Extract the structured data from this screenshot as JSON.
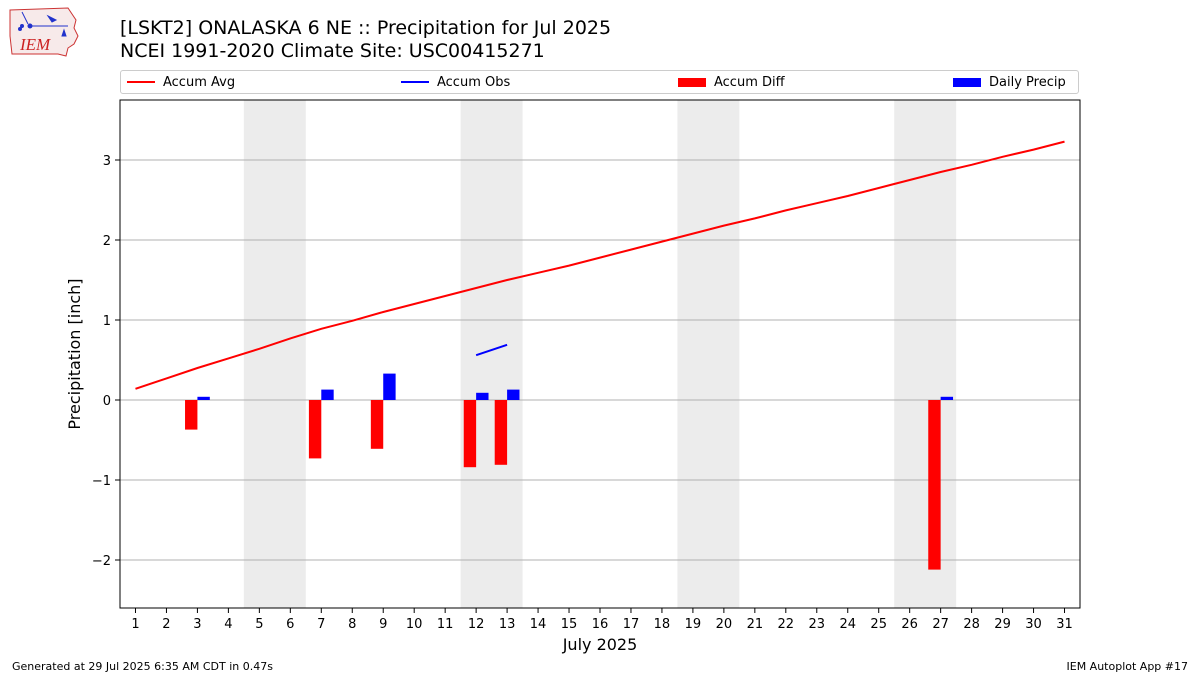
{
  "logo": {
    "text": "IEM"
  },
  "header": {
    "title_line1": "[LSKT2] ONALASKA 6 NE :: Precipitation for Jul 2025",
    "title_line2": "NCEI 1991-2020 Climate Site: USC00415271"
  },
  "footer": {
    "left": "Generated at 29 Jul 2025 6:35 AM CDT in 0.47s",
    "right": "IEM Autoplot App #17"
  },
  "colors": {
    "avg": "#ff0000",
    "obs": "#0000ff",
    "diff": "#ff0000",
    "daily": "#0000ff",
    "weekend_shade": "#ececec",
    "grid": "#b0b0b0"
  },
  "chart_data": {
    "type": "bar",
    "xlabel": "July 2025",
    "ylabel": "Precipitation [inch]",
    "xlim": [
      0.5,
      31.5
    ],
    "ylim": [
      -2.6,
      3.75
    ],
    "yticks": [
      -2,
      -1,
      0,
      1,
      2,
      3
    ],
    "ytick_labels": [
      "−2",
      "−1",
      "0",
      "1",
      "2",
      "3"
    ],
    "grid": "horizontal",
    "legend": [
      {
        "label": "Accum Avg",
        "kind": "line",
        "color": "#ff0000"
      },
      {
        "label": "Accum Obs",
        "kind": "line",
        "color": "#0000ff"
      },
      {
        "label": "Accum Diff",
        "kind": "bar",
        "color": "#ff0000"
      },
      {
        "label": "Daily Precip",
        "kind": "bar",
        "color": "#0000ff"
      }
    ],
    "days": [
      1,
      2,
      3,
      4,
      5,
      6,
      7,
      8,
      9,
      10,
      11,
      12,
      13,
      14,
      15,
      16,
      17,
      18,
      19,
      20,
      21,
      22,
      23,
      24,
      25,
      26,
      27,
      28,
      29,
      30,
      31
    ],
    "weekend_spans": [
      [
        4.5,
        6.5
      ],
      [
        11.5,
        13.5
      ],
      [
        18.5,
        20.5
      ],
      [
        25.5,
        27.5
      ]
    ],
    "accum_avg": [
      0.14,
      0.27,
      0.4,
      0.52,
      0.64,
      0.77,
      0.89,
      0.99,
      1.1,
      1.2,
      1.3,
      1.4,
      1.5,
      1.59,
      1.68,
      1.78,
      1.88,
      1.98,
      2.08,
      2.18,
      2.27,
      2.37,
      2.46,
      2.55,
      2.65,
      2.75,
      2.85,
      2.94,
      3.04,
      3.13,
      3.23
    ],
    "accum_obs": {
      "days": [
        12,
        13
      ],
      "values": [
        0.56,
        0.69
      ]
    },
    "accum_diff": {
      "days": [
        3,
        7,
        9,
        12,
        13,
        27
      ],
      "values": [
        -0.37,
        -0.73,
        -0.61,
        -0.84,
        -0.81,
        -2.12
      ]
    },
    "daily_precip": {
      "days": [
        3,
        7,
        9,
        12,
        13,
        27
      ],
      "values": [
        0.04,
        0.13,
        0.33,
        0.09,
        0.13,
        0.04
      ]
    }
  }
}
